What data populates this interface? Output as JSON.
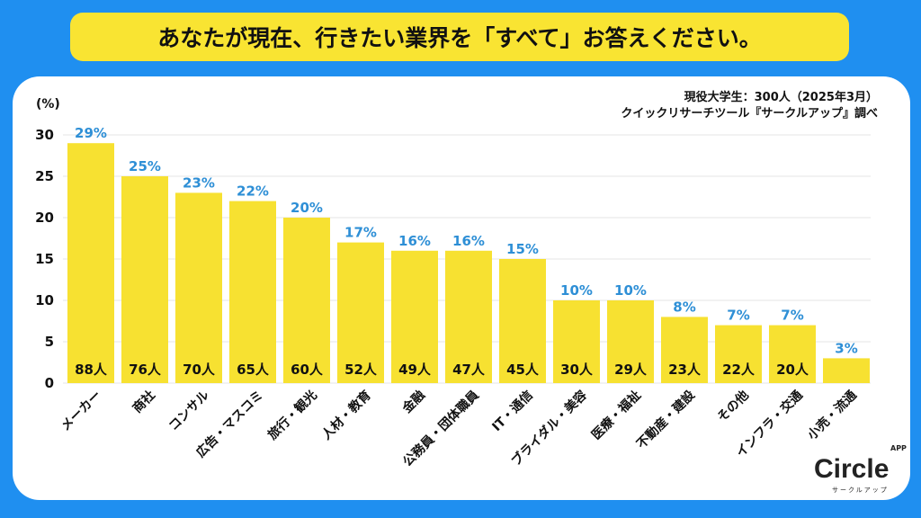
{
  "title": "あなたが現在、行きたい業界を「すべて」お答えください。",
  "note": {
    "line1": "現役大学生：300人（2025年3月）",
    "line2": "クイックリサーチツール『サークルアップ』調べ"
  },
  "logo": {
    "text": "Circle",
    "app": "APP",
    "sub": "サークルアップ"
  },
  "colors": {
    "bar": "#f7e131",
    "percent": "#2e8fd6",
    "background": "#1f8ff0"
  },
  "chart_data": {
    "type": "bar",
    "ylabel": "(%)",
    "ylim": [
      0,
      30
    ],
    "yticks": [
      0,
      5,
      10,
      15,
      20,
      25,
      30
    ],
    "grid": true,
    "categories": [
      "メーカー",
      "商社",
      "コンサル",
      "広告・マスコミ",
      "旅行・観光",
      "人材・教育",
      "金融",
      "公務員・団体職員",
      "IT・通信",
      "ブライダル・美容",
      "医療・福祉",
      "不動産・建設",
      "その他",
      "インフラ・交通",
      "小売・流通"
    ],
    "values": [
      29,
      25,
      23,
      22,
      20,
      17,
      16,
      16,
      15,
      10,
      10,
      8,
      7,
      7,
      3
    ],
    "value_labels": [
      "29%",
      "25%",
      "23%",
      "22%",
      "20%",
      "17%",
      "16%",
      "16%",
      "15%",
      "10%",
      "10%",
      "8%",
      "7%",
      "7%",
      "3%"
    ],
    "counts": [
      "88人",
      "76人",
      "70人",
      "65人",
      "60人",
      "52人",
      "49人",
      "47人",
      "45人",
      "30人",
      "29人",
      "23人",
      "22人",
      "20人",
      ""
    ]
  }
}
